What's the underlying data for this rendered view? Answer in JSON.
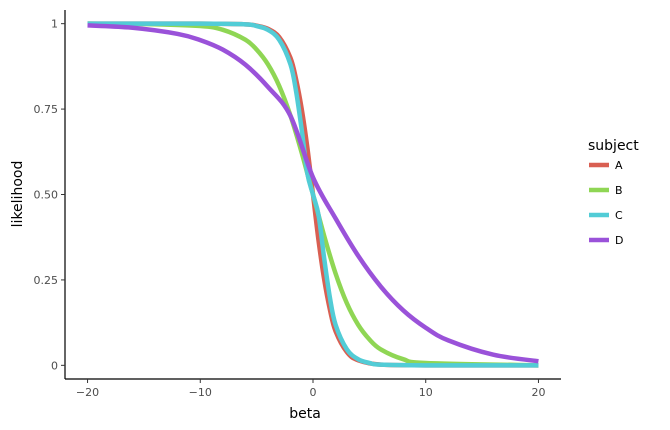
{
  "chart_data": {
    "type": "line",
    "xlabel": "beta",
    "ylabel": "likelihood",
    "xlim": [
      -22,
      22
    ],
    "ylim": [
      -0.04,
      1.04
    ],
    "x_ticks": [
      -20,
      -10,
      0,
      10,
      20
    ],
    "x_tick_labels": [
      "−20",
      "−10",
      "0",
      "10",
      "20"
    ],
    "y_ticks": [
      0,
      0.25,
      0.5,
      0.75,
      1
    ],
    "y_tick_labels": [
      "0",
      "0.25",
      "0.50",
      "0.75",
      "1"
    ],
    "grid": false,
    "legend": {
      "title": "subject",
      "position": "right"
    },
    "series": [
      {
        "name": "A",
        "color": "#d95f52",
        "x": [
          -20,
          -10,
          -6,
          -5,
          -4,
          -3,
          -2,
          -1.5,
          -1,
          -0.5,
          0,
          0.5,
          1,
          1.5,
          2,
          3,
          4,
          6,
          10,
          20
        ],
        "y": [
          1,
          1,
          0.998,
          0.994,
          0.985,
          0.961,
          0.9,
          0.837,
          0.75,
          0.637,
          0.5,
          0.363,
          0.25,
          0.163,
          0.1,
          0.039,
          0.015,
          0.002,
          0,
          0
        ]
      },
      {
        "name": "B",
        "color": "#8fd654",
        "x": [
          -20,
          -15,
          -10,
          -8,
          -6,
          -5,
          -4,
          -3,
          -2,
          -1,
          0,
          1,
          2,
          3,
          4,
          5,
          6,
          8,
          10,
          20
        ],
        "y": [
          1,
          0.999,
          0.993,
          0.982,
          0.953,
          0.924,
          0.881,
          0.818,
          0.731,
          0.622,
          0.5,
          0.378,
          0.269,
          0.182,
          0.119,
          0.076,
          0.047,
          0.018,
          0.007,
          0
        ]
      },
      {
        "name": "C",
        "color": "#52ccd6",
        "x": [
          -20,
          -10,
          -6,
          -5,
          -4,
          -3,
          -2,
          -1.5,
          -1,
          -0.5,
          0,
          0.5,
          1,
          1.5,
          2,
          3,
          4,
          5,
          6,
          10,
          20
        ],
        "y": [
          1,
          1,
          0.998,
          0.993,
          0.982,
          0.953,
          0.881,
          0.802,
          0.689,
          0.562,
          0.5,
          0.438,
          0.311,
          0.198,
          0.119,
          0.047,
          0.018,
          0.007,
          0.002,
          0,
          0
        ]
      },
      {
        "name": "D",
        "color": "#9a52d9",
        "x": [
          -20,
          -16,
          -12,
          -10,
          -8,
          -6,
          -4,
          -2,
          0,
          2,
          4,
          6,
          8,
          10,
          12,
          16,
          20
        ],
        "y": [
          0.995,
          0.988,
          0.97,
          0.952,
          0.924,
          0.88,
          0.815,
          0.73,
          0.55,
          0.43,
          0.321,
          0.231,
          0.161,
          0.11,
          0.073,
          0.031,
          0.012
        ]
      }
    ]
  }
}
